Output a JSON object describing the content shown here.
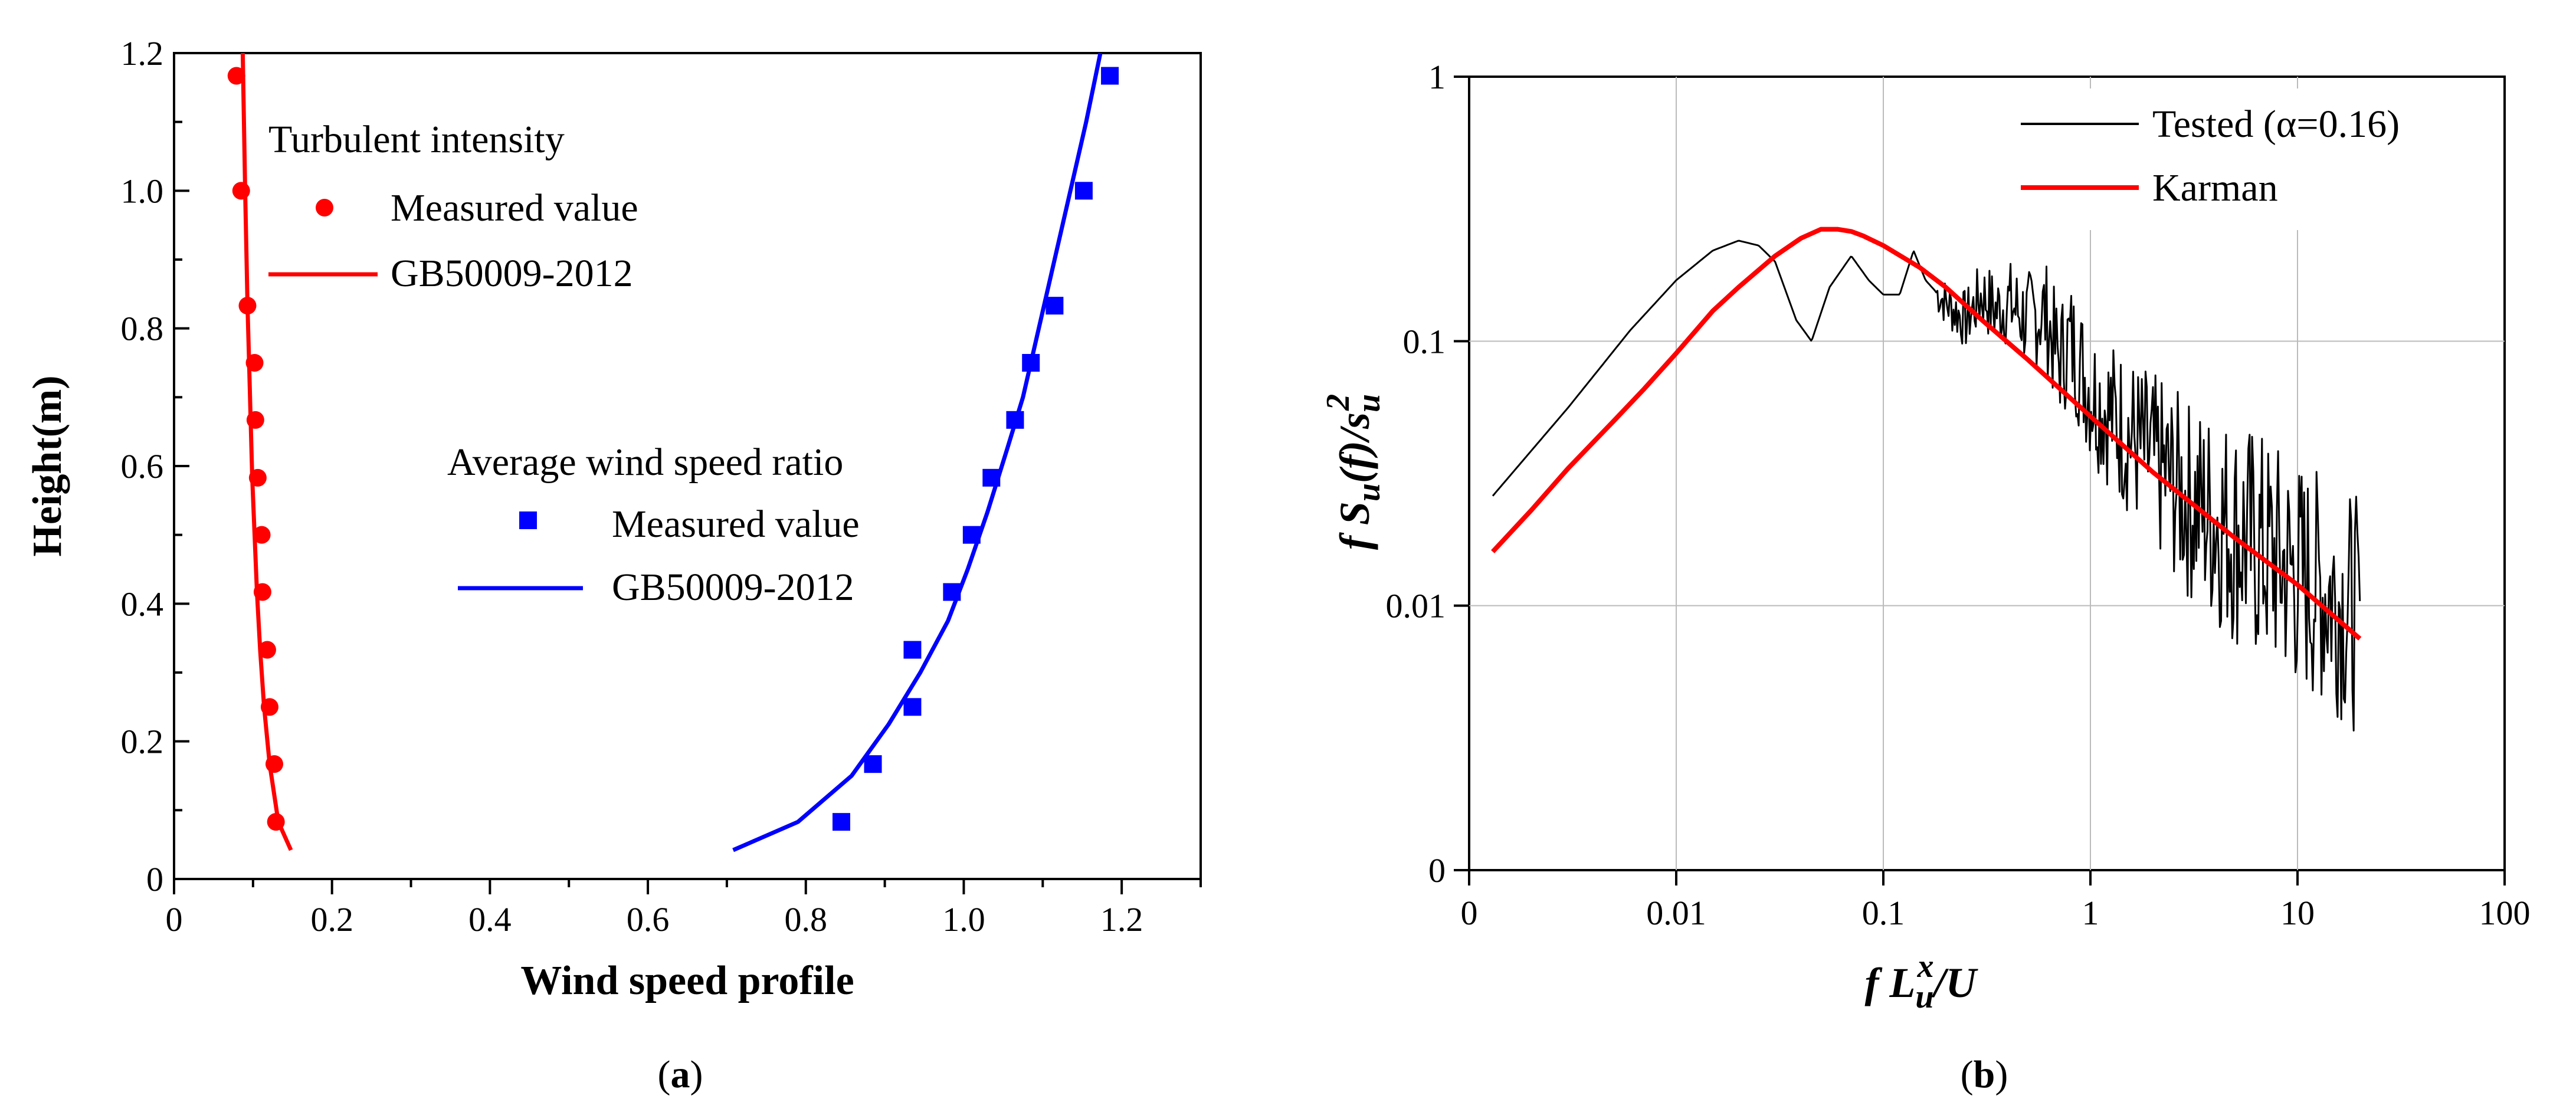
{
  "panel_labels": {
    "a_open": "(",
    "a_letter": "a",
    "a_close": ")",
    "b_open": "(",
    "b_letter": "b",
    "b_close": ")"
  },
  "chart_data": [
    {
      "type": "scatter+line",
      "panel": "a",
      "xlabel": "Wind speed profile",
      "ylabel": "Height(m)",
      "xlim": [
        0,
        1.3
      ],
      "ylim": [
        0,
        1.2
      ],
      "x_ticks": [
        0,
        0.2,
        0.4,
        0.6,
        0.8,
        1.0,
        1.2
      ],
      "x_tick_labels": [
        "0",
        "0.2",
        "0.4",
        "0.6",
        "0.8",
        "1.0",
        "1.2"
      ],
      "y_ticks": [
        0,
        0.2,
        0.4,
        0.6,
        0.8,
        1.0,
        1.2
      ],
      "y_tick_labels": [
        "0",
        "0.2",
        "0.4",
        "0.6",
        "0.8",
        "1.0",
        "1.2"
      ],
      "legend_groups": [
        {
          "title": "Turbulent intensity",
          "entries": [
            "Measured value",
            "GB50009-2012"
          ]
        },
        {
          "title": "Average wind speed ratio",
          "entries": [
            "Measured value",
            "GB50009-2012"
          ]
        }
      ],
      "series": [
        {
          "name": "Turbulent intensity - Measured value",
          "kind": "scatter",
          "marker": "circle",
          "color": "#ff0000",
          "points": [
            [
              0.079,
              1.167
            ],
            [
              0.085,
              1.0
            ],
            [
              0.093,
              0.833
            ],
            [
              0.102,
              0.75
            ],
            [
              0.103,
              0.667
            ],
            [
              0.106,
              0.583
            ],
            [
              0.111,
              0.5
            ],
            [
              0.112,
              0.417
            ],
            [
              0.118,
              0.333
            ],
            [
              0.121,
              0.25
            ],
            [
              0.127,
              0.167
            ],
            [
              0.129,
              0.083
            ]
          ]
        },
        {
          "name": "Turbulent intensity - GB50009-2012",
          "kind": "line",
          "color": "#ff0000",
          "points": [
            [
              0.148,
              0.042
            ],
            [
              0.132,
              0.083
            ],
            [
              0.121,
              0.167
            ],
            [
              0.114,
              0.25
            ],
            [
              0.109,
              0.333
            ],
            [
              0.105,
              0.417
            ],
            [
              0.102,
              0.5
            ],
            [
              0.099,
              0.583
            ],
            [
              0.097,
              0.667
            ],
            [
              0.095,
              0.75
            ],
            [
              0.093,
              0.833
            ],
            [
              0.09,
              1.0
            ],
            [
              0.087,
              1.2
            ]
          ]
        },
        {
          "name": "Average wind speed ratio - Measured value",
          "kind": "scatter",
          "marker": "square",
          "color": "#0000ff",
          "points": [
            [
              0.845,
              0.083
            ],
            [
              0.885,
              0.167
            ],
            [
              0.935,
              0.25
            ],
            [
              0.935,
              0.333
            ],
            [
              0.985,
              0.417
            ],
            [
              1.01,
              0.5
            ],
            [
              1.035,
              0.583
            ],
            [
              1.065,
              0.667
            ],
            [
              1.085,
              0.75
            ],
            [
              1.115,
              0.833
            ],
            [
              1.152,
              1.0
            ],
            [
              1.185,
              1.167
            ]
          ]
        },
        {
          "name": "Average wind speed ratio - GB50009-2012",
          "kind": "line",
          "color": "#0000ff",
          "points": [
            [
              0.708,
              0.042
            ],
            [
              0.79,
              0.083
            ],
            [
              0.858,
              0.15
            ],
            [
              0.905,
              0.225
            ],
            [
              0.945,
              0.3
            ],
            [
              0.98,
              0.375
            ],
            [
              1.005,
              0.45
            ],
            [
              1.03,
              0.533
            ],
            [
              1.055,
              0.625
            ],
            [
              1.075,
              0.7
            ],
            [
              1.095,
              0.8
            ],
            [
              1.115,
              0.9
            ],
            [
              1.135,
              1.0
            ],
            [
              1.155,
              1.1
            ],
            [
              1.173,
              1.2
            ]
          ]
        }
      ]
    },
    {
      "type": "line",
      "panel": "b",
      "scale": "log-log",
      "xlabel": "f L_u^x / U",
      "ylabel": "f S_u(f) / s_u^2",
      "xlim": [
        0.001,
        100
      ],
      "ylim": [
        0.001,
        1
      ],
      "grid": true,
      "x_ticks": [
        0.001,
        0.01,
        0.1,
        1,
        10,
        100
      ],
      "x_tick_labels": [
        "0",
        "0.01",
        "0.1",
        "1",
        "10",
        "100"
      ],
      "y_ticks": [
        0.001,
        0.01,
        0.1,
        1
      ],
      "y_tick_labels": [
        "0",
        "0.01",
        "0.1",
        "1"
      ],
      "legend": {
        "position": "top-right",
        "entries": [
          "Tested  (α=0.16)",
          "Karman"
        ]
      },
      "series": [
        {
          "name": "Tested  (α=0.16)",
          "color": "#000000",
          "x": [
            0.0013,
            0.003,
            0.006,
            0.01,
            0.015,
            0.02,
            0.025,
            0.03,
            0.038,
            0.045,
            0.055,
            0.07,
            0.085,
            0.1,
            0.12,
            0.14,
            0.16,
            0.2,
            0.25,
            0.3,
            0.35,
            0.4,
            0.5,
            0.6,
            0.7,
            0.8,
            1.0,
            1.5,
            2.0,
            3.0,
            5.0,
            7.0,
            10.0,
            15.0,
            20.0
          ],
          "y": [
            0.026,
            0.056,
            0.11,
            0.17,
            0.22,
            0.24,
            0.23,
            0.2,
            0.12,
            0.1,
            0.16,
            0.21,
            0.17,
            0.15,
            0.15,
            0.22,
            0.17,
            0.14,
            0.12,
            0.15,
            0.13,
            0.14,
            0.12,
            0.13,
            0.085,
            0.1,
            0.065,
            0.045,
            0.035,
            0.025,
            0.019,
            0.016,
            0.013,
            0.011,
            0.009
          ],
          "band_y": [
            0.085,
            0.1,
            0.065,
            0.045,
            0.035,
            0.025,
            0.019,
            0.016,
            0.013,
            0.011,
            0.009
          ]
        },
        {
          "name": "Karman",
          "color": "#ff0000",
          "x": [
            0.0013,
            0.002,
            0.003,
            0.005,
            0.007,
            0.01,
            0.015,
            0.02,
            0.03,
            0.04,
            0.05,
            0.06,
            0.07,
            0.08,
            0.1,
            0.15,
            0.2,
            0.3,
            0.5,
            1.0,
            2.0,
            5.0,
            10.0,
            20.0
          ],
          "y": [
            0.016,
            0.023,
            0.033,
            0.05,
            0.066,
            0.09,
            0.13,
            0.16,
            0.21,
            0.245,
            0.265,
            0.265,
            0.26,
            0.25,
            0.23,
            0.19,
            0.16,
            0.12,
            0.085,
            0.052,
            0.032,
            0.018,
            0.012,
            0.0075
          ]
        }
      ]
    }
  ]
}
